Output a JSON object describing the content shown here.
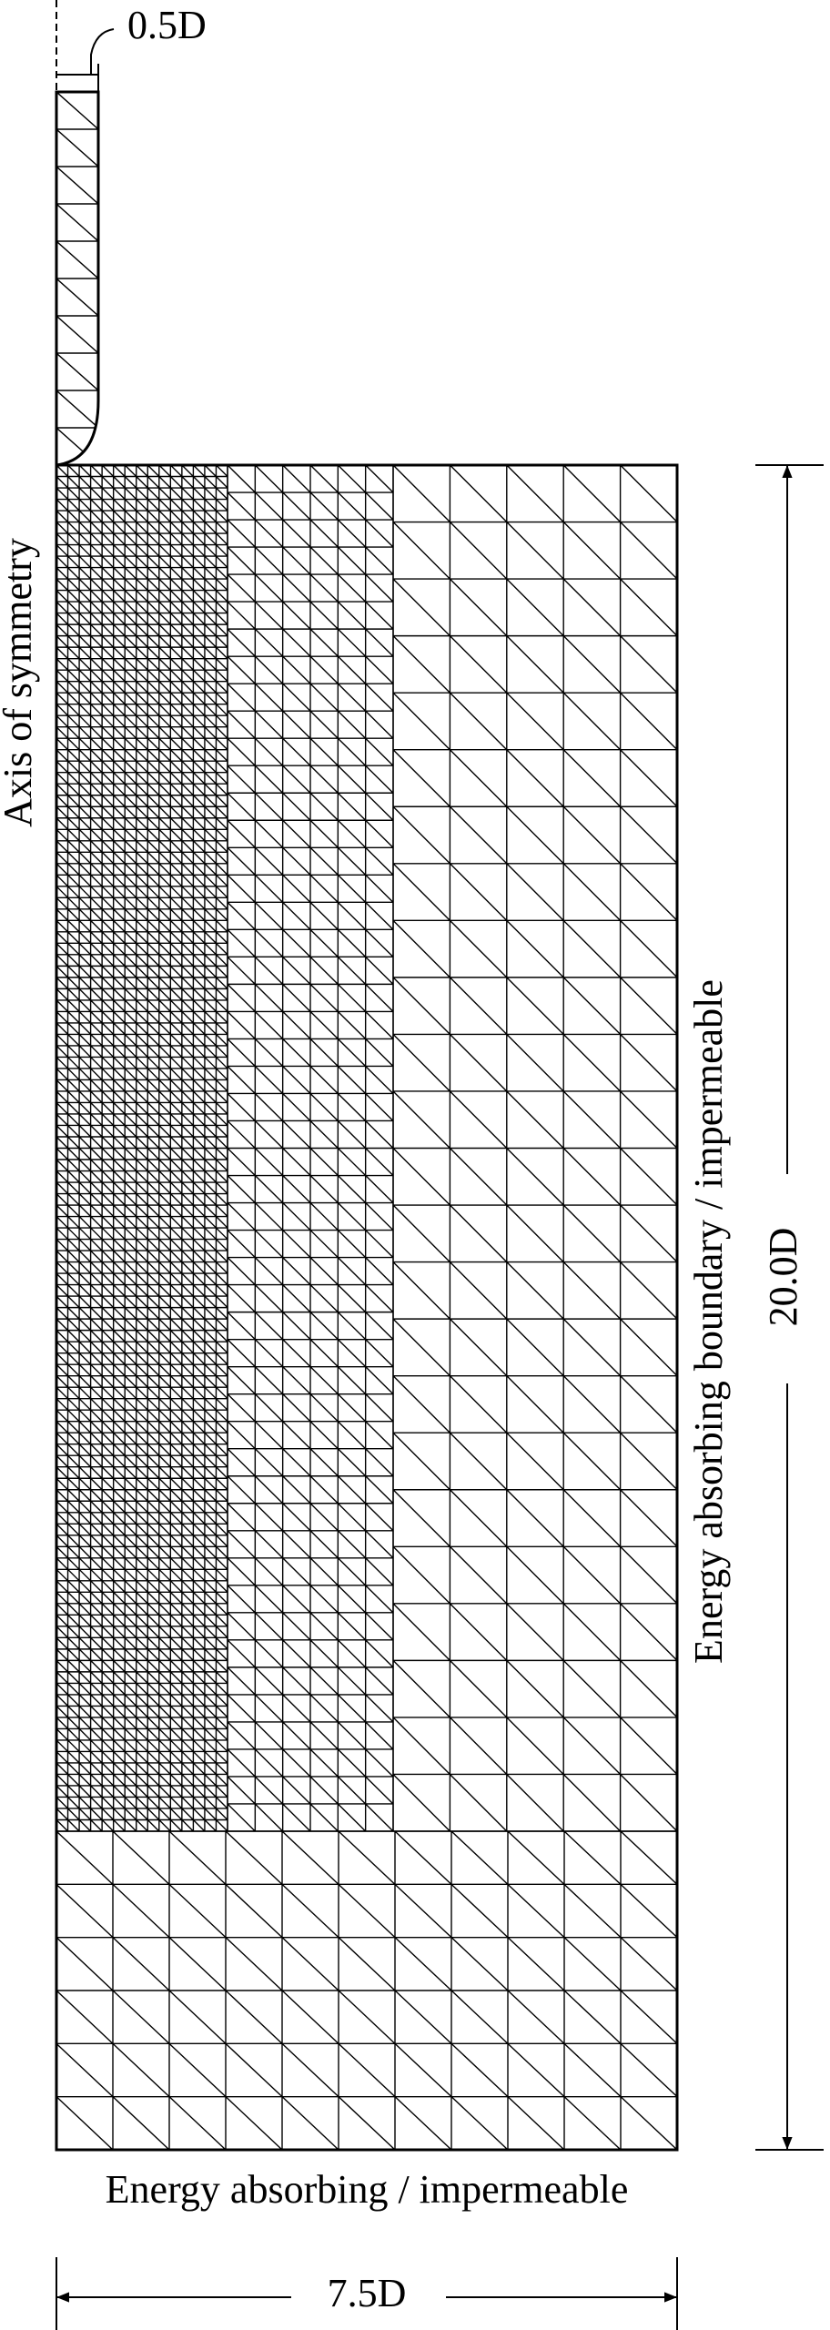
{
  "labels": {
    "pile_width": "0.5D",
    "axis": "Axis of symmetry",
    "right_boundary": "Energy absorbing boundary / impermeable",
    "height": "20.0D",
    "bottom_boundary": "Energy absorbing / impermeable",
    "width": "7.5D"
  }
}
